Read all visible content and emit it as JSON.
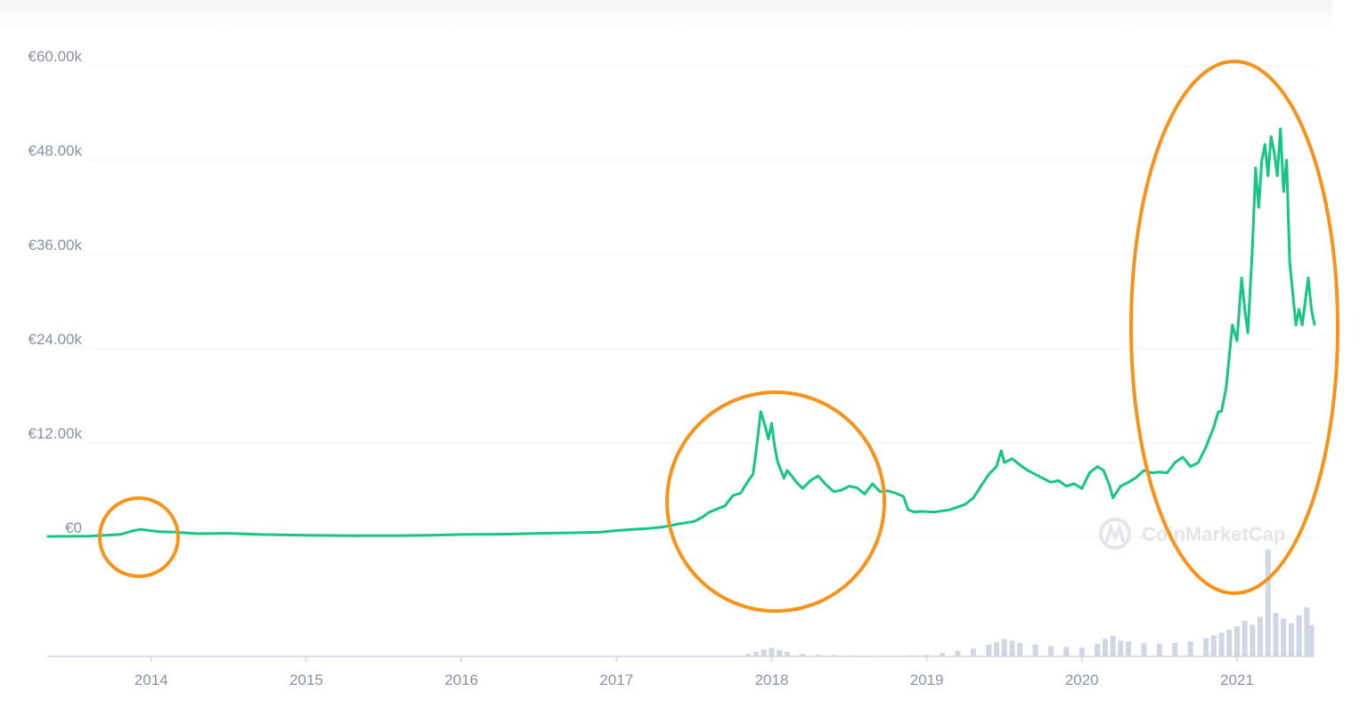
{
  "chart_data": {
    "type": "line",
    "y_tick_labels": [
      "€0",
      "€12.00k",
      "€24.00k",
      "€36.00k",
      "€48.00k",
      "€60.00k"
    ],
    "y_tick_values": [
      0,
      12000,
      24000,
      36000,
      48000,
      60000
    ],
    "ylim": [
      -15000,
      60000
    ],
    "x_tick_labels": [
      "2014",
      "2015",
      "2016",
      "2017",
      "2018",
      "2019",
      "2020",
      "2021"
    ],
    "x_tick_values": [
      2014,
      2015,
      2016,
      2017,
      2018,
      2019,
      2020,
      2021
    ],
    "xlim": [
      2013.33,
      2021.5
    ],
    "grid": true,
    "series": [
      {
        "color": "#16c784",
        "x": [
          2013.33,
          2013.6,
          2013.8,
          2013.88,
          2013.93,
          2013.97,
          2014.05,
          2014.15,
          2014.3,
          2014.5,
          2014.7,
          2015.0,
          2015.3,
          2015.6,
          2015.8,
          2016.0,
          2016.3,
          2016.5,
          2016.7,
          2016.9,
          2017.0,
          2017.1,
          2017.2,
          2017.3,
          2017.4,
          2017.5,
          2017.55,
          2017.6,
          2017.65,
          2017.7,
          2017.75,
          2017.8,
          2017.85,
          2017.88,
          2017.9,
          2017.93,
          2017.96,
          2017.98,
          2018.0,
          2018.02,
          2018.04,
          2018.06,
          2018.08,
          2018.1,
          2018.13,
          2018.16,
          2018.2,
          2018.25,
          2018.3,
          2018.35,
          2018.4,
          2018.45,
          2018.5,
          2018.55,
          2018.6,
          2018.65,
          2018.7,
          2018.75,
          2018.8,
          2018.85,
          2018.88,
          2018.92,
          2018.97,
          2019.05,
          2019.15,
          2019.25,
          2019.3,
          2019.35,
          2019.4,
          2019.45,
          2019.48,
          2019.5,
          2019.55,
          2019.6,
          2019.65,
          2019.7,
          2019.75,
          2019.8,
          2019.85,
          2019.9,
          2019.95,
          2020.0,
          2020.05,
          2020.1,
          2020.14,
          2020.18,
          2020.2,
          2020.25,
          2020.3,
          2020.35,
          2020.4,
          2020.45,
          2020.5,
          2020.55,
          2020.6,
          2020.65,
          2020.7,
          2020.75,
          2020.8,
          2020.85,
          2020.88,
          2020.9,
          2020.93,
          2020.95,
          2020.97,
          2021.0,
          2021.03,
          2021.05,
          2021.07,
          2021.1,
          2021.12,
          2021.14,
          2021.16,
          2021.18,
          2021.2,
          2021.22,
          2021.24,
          2021.26,
          2021.28,
          2021.3,
          2021.32,
          2021.34,
          2021.36,
          2021.38,
          2021.4,
          2021.42,
          2021.44,
          2021.46,
          2021.48,
          2021.5
        ],
        "y": [
          100,
          150,
          350,
          800,
          1000,
          900,
          700,
          650,
          450,
          500,
          350,
          250,
          200,
          220,
          250,
          350,
          400,
          500,
          550,
          650,
          850,
          1000,
          1100,
          1300,
          1700,
          2000,
          2500,
          3200,
          3600,
          4000,
          5300,
          5600,
          7200,
          8000,
          11000,
          16000,
          14000,
          12500,
          14500,
          11500,
          9500,
          8500,
          7500,
          8500,
          7800,
          7000,
          6200,
          7200,
          7800,
          6700,
          5800,
          6000,
          6500,
          6300,
          5500,
          6800,
          5800,
          5900,
          5600,
          5200,
          3500,
          3200,
          3300,
          3200,
          3500,
          4200,
          5000,
          6500,
          8000,
          9000,
          11000,
          9500,
          10000,
          9200,
          8500,
          8000,
          7500,
          7000,
          7200,
          6500,
          6800,
          6200,
          8200,
          9000,
          8500,
          6500,
          5000,
          6500,
          7000,
          7600,
          8500,
          8200,
          8300,
          8200,
          9500,
          10200,
          9000,
          9500,
          11500,
          14000,
          16000,
          16000,
          19000,
          23000,
          27000,
          25000,
          33000,
          29000,
          26000,
          37000,
          47000,
          42000,
          48000,
          50000,
          46000,
          51000,
          49000,
          46000,
          52000,
          44000,
          48000,
          35000,
          31000,
          27000,
          29000,
          27000,
          30000,
          33000,
          29000,
          27000
        ]
      }
    ],
    "volume_bars": {
      "color": "#cfd6e4",
      "x": [
        2017.85,
        2017.9,
        2017.95,
        2018.0,
        2018.05,
        2018.1,
        2018.2,
        2018.3,
        2018.4,
        2018.5,
        2018.6,
        2018.7,
        2018.8,
        2018.9,
        2019.0,
        2019.1,
        2019.2,
        2019.3,
        2019.4,
        2019.45,
        2019.5,
        2019.55,
        2019.6,
        2019.7,
        2019.8,
        2019.9,
        2020.0,
        2020.1,
        2020.15,
        2020.2,
        2020.25,
        2020.3,
        2020.4,
        2020.5,
        2020.6,
        2020.7,
        2020.8,
        2020.85,
        2020.9,
        2020.95,
        2021.0,
        2021.05,
        2021.1,
        2021.15,
        2021.2,
        2021.25,
        2021.3,
        2021.35,
        2021.4,
        2021.45,
        2021.48
      ],
      "y": [
        300,
        600,
        900,
        1100,
        800,
        600,
        300,
        200,
        150,
        120,
        100,
        90,
        120,
        150,
        200,
        450,
        700,
        1000,
        1500,
        1800,
        2200,
        2000,
        1700,
        1500,
        1300,
        1200,
        1100,
        1600,
        2200,
        2600,
        2000,
        1900,
        1700,
        1600,
        1700,
        1900,
        2300,
        2700,
        3000,
        3400,
        3800,
        4500,
        4000,
        5000,
        13500,
        5500,
        4800,
        4200,
        5200,
        6200,
        4000
      ]
    }
  },
  "watermark": {
    "text": "CoinMarketCap",
    "icon": "coinmarketcap-logo-icon"
  },
  "annotations": {
    "color": "#f7931a"
  }
}
